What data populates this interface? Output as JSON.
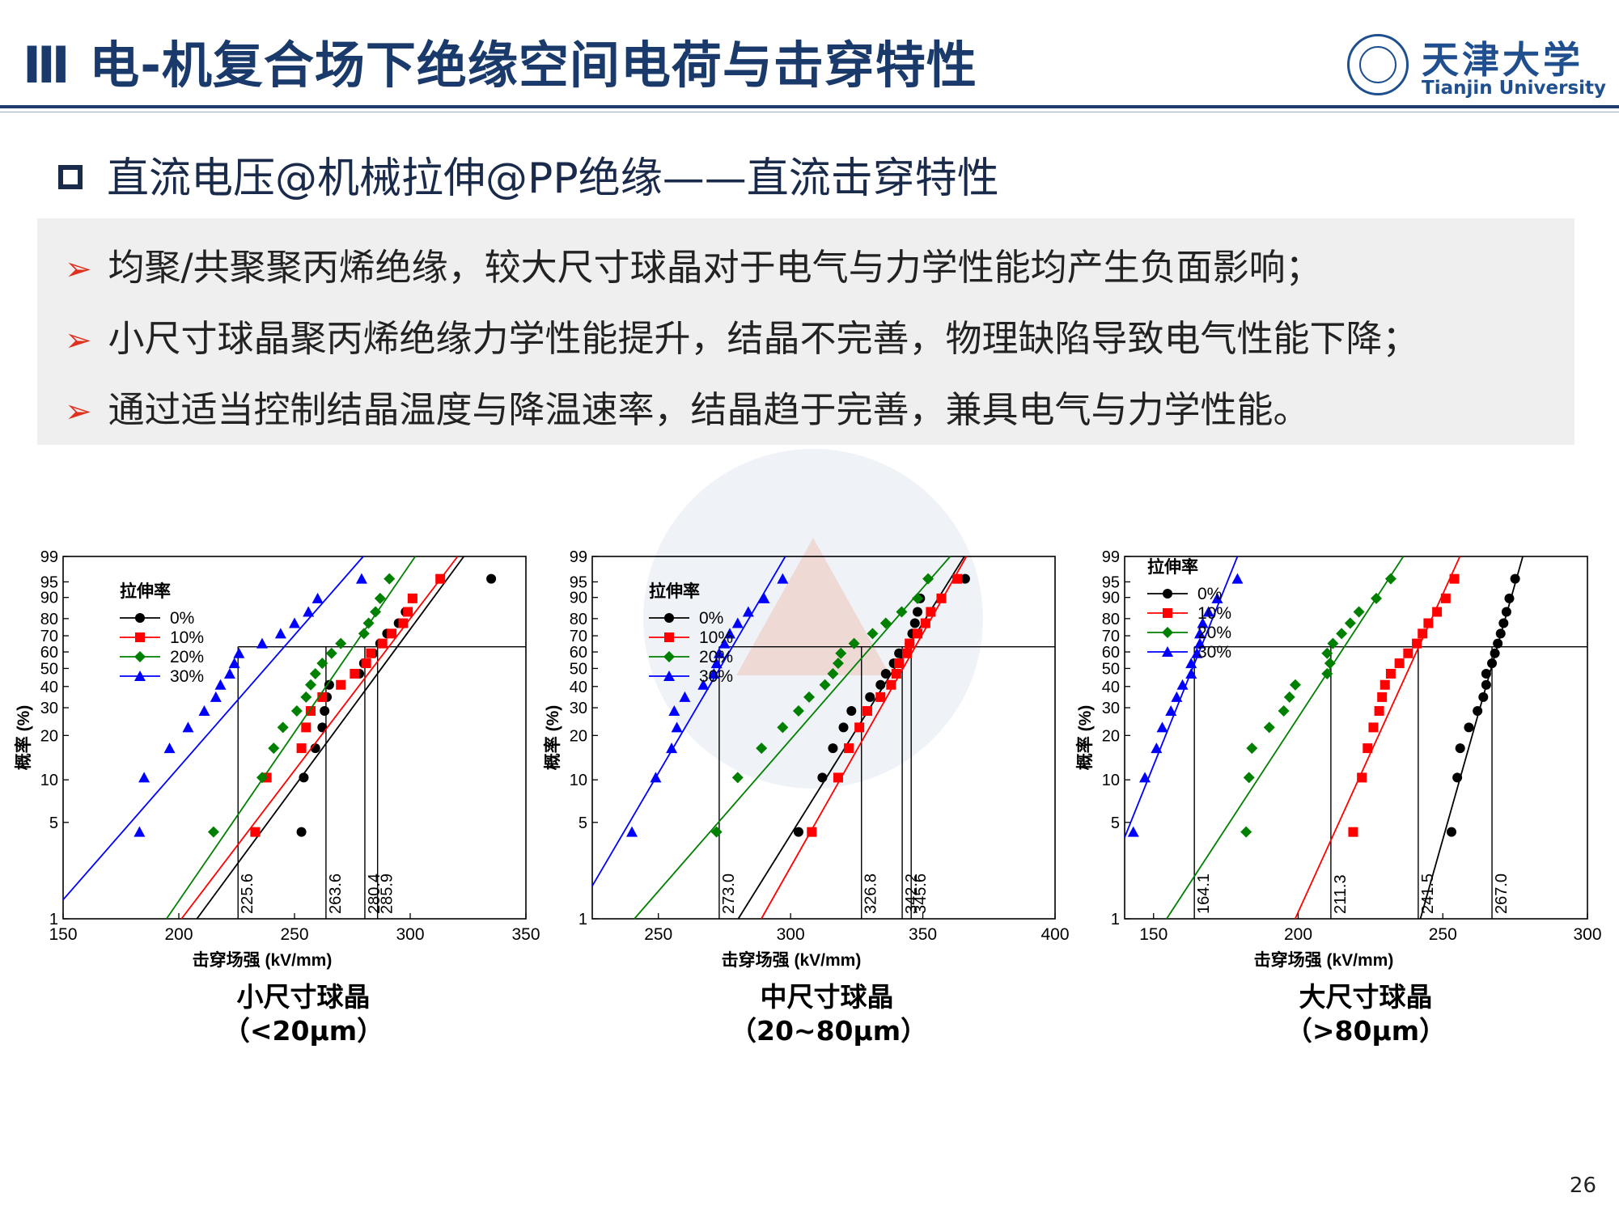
{
  "header": {
    "title": "Ⅲ  电-机复合场下绝缘空间电荷与击穿特性",
    "logo_cn": "天津大学",
    "logo_en": "Tianjin University"
  },
  "subheading": "直流电压@机械拉伸@PP绝缘——直流击穿特性",
  "bullets": [
    "均聚/共聚聚丙烯绝缘，较大尺寸球晶对于电气与力学性能均产生负面影响；",
    "小尺寸球晶聚丙烯绝缘力学性能提升，结晶不完善，物理缺陷导致电气性能下降；",
    "通过适当控制结晶温度与降温速率，结晶趋于完善，兼具电气与力学性能。"
  ],
  "page_number": "26",
  "colors": {
    "0%": "#000000",
    "10%": "#ff0000",
    "20%": "#008000",
    "30%": "#0000ff"
  },
  "chart_data": [
    {
      "type": "scatter",
      "caption_line1": "小尺寸球晶",
      "caption_line2": "（<20μm）",
      "xlabel": "击穿场强 (kV/mm)",
      "ylabel": "概率 (%)",
      "legend_title": "拉伸率",
      "xlim": [
        150,
        350
      ],
      "xticks": [
        150,
        200,
        250,
        300,
        350
      ],
      "yticks": [
        1,
        5,
        10,
        20,
        30,
        40,
        50,
        60,
        70,
        80,
        90,
        95,
        99
      ],
      "ylim": [
        1,
        99
      ],
      "scale_breakdown": [
        225.6,
        263.6,
        280.4,
        285.9
      ],
      "series": [
        {
          "name": "0%",
          "marker": "circle",
          "values": [
            253,
            254,
            259,
            262,
            263,
            264,
            265,
            278,
            280,
            284,
            287,
            290,
            295,
            298,
            301,
            335
          ]
        },
        {
          "name": "10%",
          "marker": "square",
          "values": [
            233,
            238,
            253,
            255,
            257,
            262,
            270,
            276,
            281,
            283,
            288,
            292,
            297,
            299,
            301,
            313
          ]
        },
        {
          "name": "20%",
          "marker": "diamond",
          "values": [
            215,
            236,
            241,
            245,
            251,
            255,
            257,
            259,
            262,
            266,
            270,
            280,
            282,
            285,
            287,
            291
          ]
        },
        {
          "name": "30%",
          "marker": "triangle",
          "values": [
            183,
            185,
            196,
            204,
            211,
            216,
            218,
            222,
            224,
            226,
            236,
            244,
            250,
            256,
            260,
            279
          ]
        }
      ]
    },
    {
      "type": "scatter",
      "caption_line1": "中尺寸球晶",
      "caption_line2": "（20~80μm）",
      "xlabel": "击穿场强 (kV/mm)",
      "ylabel": "概率 (%)",
      "legend_title": "拉伸率",
      "xlim": [
        225,
        400
      ],
      "xticks": [
        250,
        300,
        350,
        400
      ],
      "yticks": [
        1,
        5,
        10,
        20,
        30,
        40,
        50,
        60,
        70,
        80,
        90,
        95,
        99
      ],
      "ylim": [
        1,
        99
      ],
      "scale_breakdown": [
        273.0,
        326.8,
        342.2,
        345.6
      ],
      "series": [
        {
          "name": "0%",
          "marker": "circle",
          "values": [
            303,
            312,
            316,
            320,
            323,
            330,
            334,
            336,
            339,
            341,
            345,
            346,
            347,
            348,
            349,
            366
          ]
        },
        {
          "name": "10%",
          "marker": "square",
          "values": [
            308,
            318,
            322,
            326,
            329,
            334,
            338,
            340,
            341,
            344,
            345,
            348,
            351,
            353,
            357,
            363
          ]
        },
        {
          "name": "20%",
          "marker": "diamond",
          "values": [
            272,
            280,
            289,
            297,
            303,
            307,
            313,
            316,
            318,
            319,
            324,
            331,
            336,
            342,
            348,
            352
          ]
        },
        {
          "name": "30%",
          "marker": "triangle",
          "values": [
            240,
            249,
            255,
            257,
            256,
            260,
            267,
            271,
            272,
            273,
            275,
            277,
            280,
            284,
            290,
            297
          ]
        }
      ]
    },
    {
      "type": "scatter",
      "caption_line1": "大尺寸球晶",
      "caption_line2": "（>80μm）",
      "xlabel": "击穿场强 (kV/mm)",
      "ylabel": "概率 (%)",
      "legend_title": "拉伸率",
      "xlim": [
        140,
        300
      ],
      "xticks": [
        150,
        200,
        250,
        300
      ],
      "yticks": [
        1,
        5,
        10,
        20,
        30,
        40,
        50,
        60,
        70,
        80,
        90,
        95,
        99
      ],
      "ylim": [
        1,
        99
      ],
      "scale_breakdown": [
        164.1,
        211.3,
        241.5,
        267.0
      ],
      "series": [
        {
          "name": "0%",
          "marker": "circle",
          "values": [
            253,
            255,
            256,
            259,
            262,
            264,
            265,
            265,
            267,
            268,
            269,
            270,
            271,
            272,
            273,
            275
          ]
        },
        {
          "name": "10%",
          "marker": "square",
          "values": [
            219,
            222,
            224,
            226,
            228,
            229,
            230,
            232,
            235,
            238,
            241,
            243,
            245,
            248,
            251,
            254
          ]
        },
        {
          "name": "20%",
          "marker": "diamond",
          "values": [
            182,
            183,
            184,
            190,
            195,
            197,
            199,
            210,
            211,
            210,
            212,
            215,
            218,
            221,
            227,
            232
          ]
        },
        {
          "name": "30%",
          "marker": "triangle",
          "values": [
            143,
            147,
            151,
            153,
            156,
            158,
            160,
            163,
            163,
            165,
            166,
            166,
            167,
            169,
            172,
            179
          ]
        }
      ]
    }
  ]
}
